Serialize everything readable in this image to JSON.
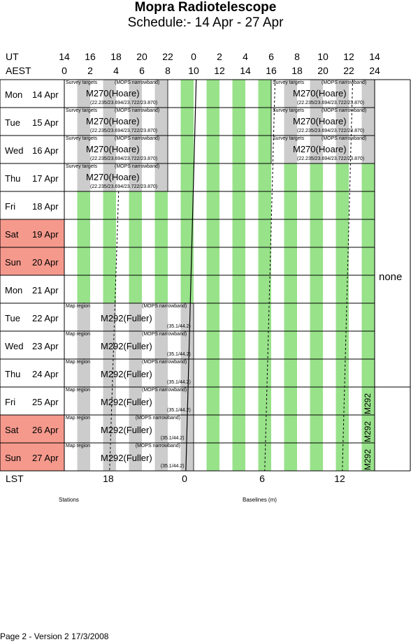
{
  "title": "Mopra Radiotelescope",
  "subtitle": "Schedule:- 14 Apr - 27 Apr",
  "ut_label": "UT",
  "aest_label": "AEST",
  "lst_label": "LST",
  "ut_ticks": [
    "14",
    "16",
    "18",
    "20",
    "22",
    "0",
    "2",
    "4",
    "6",
    "8",
    "10",
    "12",
    "14"
  ],
  "aest_ticks": [
    "0",
    "2",
    "4",
    "6",
    "8",
    "10",
    "12",
    "14",
    "16",
    "18",
    "20",
    "22",
    "24"
  ],
  "lst_ticks": [
    "18",
    "0",
    "6",
    "12"
  ],
  "days": [
    {
      "dow": "Mon",
      "date": "14 Apr",
      "weekend": false
    },
    {
      "dow": "Tue",
      "date": "15 Apr",
      "weekend": false
    },
    {
      "dow": "Wed",
      "date": "16 Apr",
      "weekend": false
    },
    {
      "dow": "Thu",
      "date": "17 Apr",
      "weekend": false
    },
    {
      "dow": "Fri",
      "date": "18 Apr",
      "weekend": false
    },
    {
      "dow": "Sat",
      "date": "19 Apr",
      "weekend": true
    },
    {
      "dow": "Sun",
      "date": "20 Apr",
      "weekend": true
    },
    {
      "dow": "Mon",
      "date": "21 Apr",
      "weekend": false
    },
    {
      "dow": "Tue",
      "date": "22 Apr",
      "weekend": false
    },
    {
      "dow": "Wed",
      "date": "23 Apr",
      "weekend": false
    },
    {
      "dow": "Thu",
      "date": "24 Apr",
      "weekend": false
    },
    {
      "dow": "Fri",
      "date": "25 Apr",
      "weekend": false
    },
    {
      "dow": "Sat",
      "date": "26 Apr",
      "weekend": true
    },
    {
      "dow": "Sun",
      "date": "27 Apr",
      "weekend": true
    }
  ],
  "projects": {
    "m270": {
      "name": "M270(Hoare)",
      "top_left": "Survey targets",
      "top_right": "(MOPS narrowband)",
      "bottom": "(22.235/23.694/23.722/23.870)"
    },
    "m292": {
      "name": "M292(Fuller)",
      "top_left": "Map region",
      "top_right": "(MOPS narrowband)",
      "bottom": "(35.1/44.2)"
    },
    "m292_short": "M292"
  },
  "unscheduled_label": "none",
  "stations_label": "Stations",
  "baselines_label": "Baselines (m)",
  "footer": "Page 2 - Version 2  17/3/2008",
  "colors": {
    "weekend": "#f5998c",
    "green": "#98e28a",
    "grey": "#cccccc"
  }
}
